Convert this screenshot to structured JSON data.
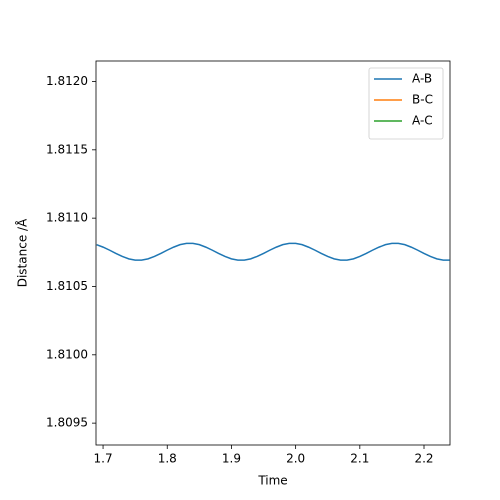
{
  "chart_data": {
    "type": "line",
    "xlabel": "Time",
    "ylabel": "Distance /Å",
    "x": [
      1.69,
      1.7,
      1.71,
      1.72,
      1.73,
      1.74,
      1.75,
      1.76,
      1.77,
      1.78,
      1.79,
      1.8,
      1.81,
      1.82,
      1.83,
      1.84,
      1.85,
      1.86,
      1.87,
      1.88,
      1.89,
      1.9,
      1.91,
      1.92,
      1.93,
      1.94,
      1.95,
      1.96,
      1.97,
      1.98,
      1.99,
      2.0,
      2.01,
      2.02,
      2.03,
      2.04,
      2.05,
      2.06,
      2.07,
      2.08,
      2.09,
      2.1,
      2.11,
      2.12,
      2.13,
      2.14,
      2.15,
      2.16,
      2.17,
      2.18,
      2.19,
      2.2,
      2.21,
      2.22,
      2.23,
      2.24
    ],
    "series": [
      {
        "name": "A-B",
        "color": "#1f77b4",
        "values": [
          1.810806,
          1.810788,
          1.810766,
          1.810742,
          1.81072,
          1.810702,
          1.810693,
          1.810693,
          1.810702,
          1.81072,
          1.810742,
          1.810766,
          1.810788,
          1.810806,
          1.810815,
          1.810815,
          1.810806,
          1.810788,
          1.810766,
          1.810742,
          1.81072,
          1.810702,
          1.810693,
          1.810693,
          1.810702,
          1.81072,
          1.810742,
          1.810766,
          1.810788,
          1.810806,
          1.810815,
          1.810815,
          1.810806,
          1.810788,
          1.810766,
          1.810742,
          1.81072,
          1.810702,
          1.810693,
          1.810693,
          1.810702,
          1.81072,
          1.810742,
          1.810766,
          1.810788,
          1.810806,
          1.810815,
          1.810815,
          1.810806,
          1.810788,
          1.810766,
          1.810742,
          1.81072,
          1.810702,
          1.810693,
          1.810693
        ]
      },
      {
        "name": "B-C",
        "color": "#ff7f0e",
        "values": [
          null,
          null,
          null,
          null,
          null,
          null,
          null,
          null,
          null,
          null,
          null,
          null,
          null,
          null,
          null,
          null,
          null,
          null,
          null,
          null,
          null,
          null,
          null,
          null,
          null,
          null,
          null,
          null,
          null,
          null,
          null,
          null,
          null,
          null,
          null,
          null,
          null,
          null,
          null,
          null,
          null,
          null,
          null,
          null,
          null,
          null,
          null,
          null,
          null,
          null,
          null,
          null,
          null,
          null,
          null,
          null
        ]
      },
      {
        "name": "A-C",
        "color": "#2ca02c",
        "values": [
          null,
          null,
          null,
          null,
          null,
          null,
          null,
          null,
          null,
          null,
          null,
          null,
          null,
          null,
          null,
          null,
          null,
          null,
          null,
          null,
          null,
          null,
          null,
          null,
          null,
          null,
          null,
          null,
          null,
          null,
          null,
          null,
          null,
          null,
          null,
          null,
          null,
          null,
          null,
          null,
          null,
          null,
          null,
          null,
          null,
          null,
          null,
          null,
          null,
          null,
          null,
          null,
          null,
          null,
          null,
          null
        ]
      }
    ],
    "xlim": [
      1.689,
      2.2405
    ],
    "xticks": [
      1.7,
      1.8,
      1.9,
      {
        "value": 2.0,
        "label": "2.0"
      },
      2.1,
      2.2
    ],
    "ylim": [
      1.80934,
      1.81215
    ],
    "yticks": [
      1.8095,
      {
        "value": 1.81,
        "label": "1.8100"
      },
      1.8105,
      {
        "value": 1.811,
        "label": "1.8110"
      },
      1.8115,
      {
        "value": 1.812,
        "label": "1.8120"
      }
    ],
    "legend": "upper right"
  }
}
